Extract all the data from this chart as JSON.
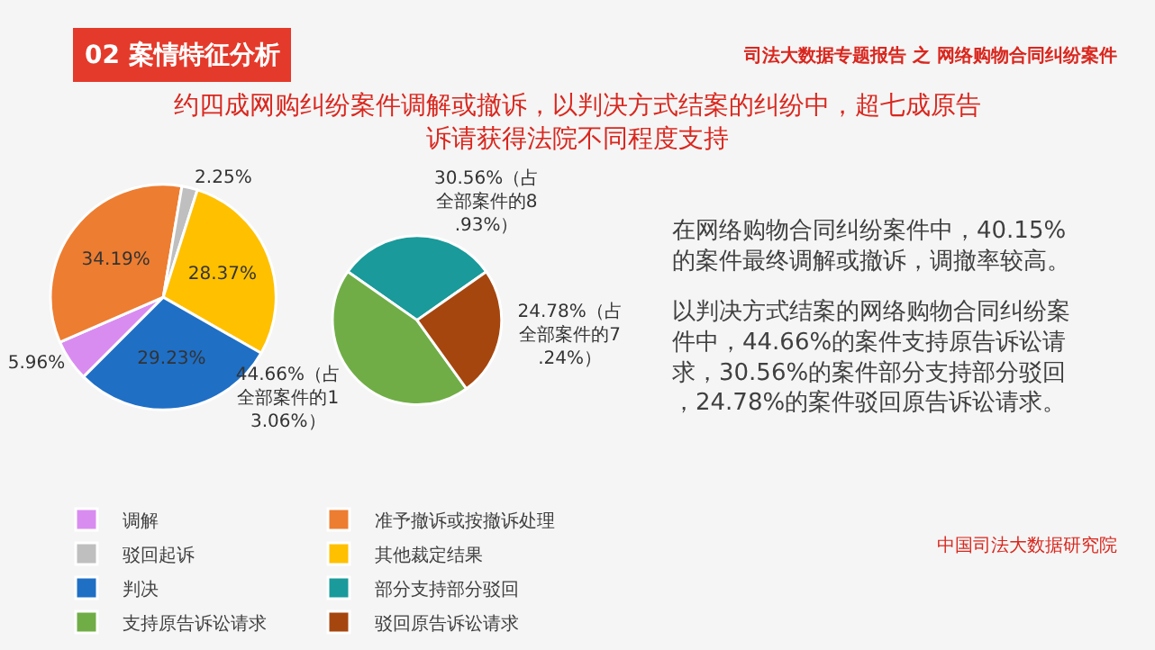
{
  "chart_data": [
    {
      "type": "pie",
      "title": "约四成网购纠纷案件调解或撤诉，以判决方式结案的纠纷中，超七成原告诉请获得法院不同程度支持",
      "annotations": [
        "02 案情特征分析",
        "司法大数据专题报告 之 网络购物合同纠纷案件",
        "中国司法大数据研究院"
      ],
      "categories": [
        "调解",
        "准予撤诉或按撤诉处理",
        "驳回起诉",
        "其他裁定结果",
        "判决"
      ],
      "values": [
        5.96,
        34.19,
        2.25,
        28.37,
        29.23
      ],
      "colors": [
        "#d98cf0",
        "#ed7d31",
        "#bfbfbf",
        "#ffc000",
        "#1f6fc5"
      ],
      "value_labels": [
        "5.96%",
        "34.19%",
        "2.25%",
        "28.37%",
        "29.23%"
      ],
      "legend": "bottom"
    },
    {
      "type": "pie",
      "categories": [
        "部分支持部分驳回",
        "支持原告诉讼请求",
        "驳回原告诉讼请求"
      ],
      "values": [
        30.56,
        44.66,
        24.78
      ],
      "colors": [
        "#1a9a9a",
        "#70ad47",
        "#a5460f"
      ],
      "value_labels": [
        "30.56%（占全部案件的8.93%）",
        "44.66%（占全部案件的13.06%）",
        "24.78%（占全部案件的7.24%）"
      ],
      "legend": "bottom"
    },
    {
      "type": "other",
      "annotations": [
        "在网络购物合同纠纷案件中，40.15%的案件最终调解或撤诉，调撤率较高。",
        "以判决方式结案的网络购物合同纠纷案件中，44.66%的案件支持原告诉讼请求，30.56%的案件部分支持部分驳回，24.78%的案件驳回原告诉讼请求。"
      ]
    }
  ]
}
